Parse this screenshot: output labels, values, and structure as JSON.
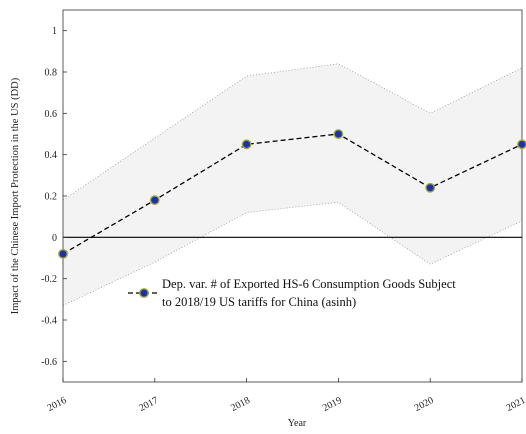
{
  "chart_data": {
    "type": "line",
    "x_label": "Year",
    "y_label": "Impact of the Chinese Import Protection in the US (DD)",
    "x": [
      2016,
      2017,
      2018,
      2019,
      2020,
      2021
    ],
    "series": [
      {
        "name": "Dep. var. # of Exported HS-6 Consumption Goods Subject to 2018/19 US tariffs for China (asinh)",
        "color": "#1f2fb0",
        "values": [
          -0.08,
          0.18,
          0.45,
          0.5,
          0.24,
          0.45
        ]
      }
    ],
    "ci_upper": [
      0.18,
      0.48,
      0.78,
      0.84,
      0.6,
      0.82
    ],
    "ci_lower": [
      -0.33,
      -0.12,
      0.12,
      0.17,
      -0.13,
      0.08
    ],
    "xlim": [
      2016,
      2021
    ],
    "xticks": [
      2016,
      2017,
      2018,
      2019,
      2020,
      2021
    ],
    "ylim": [
      -0.7,
      1.1
    ],
    "yticks": [
      -0.6,
      -0.4,
      -0.2,
      0,
      0.2,
      0.4,
      0.6,
      0.8,
      1
    ],
    "zero_line": true
  }
}
